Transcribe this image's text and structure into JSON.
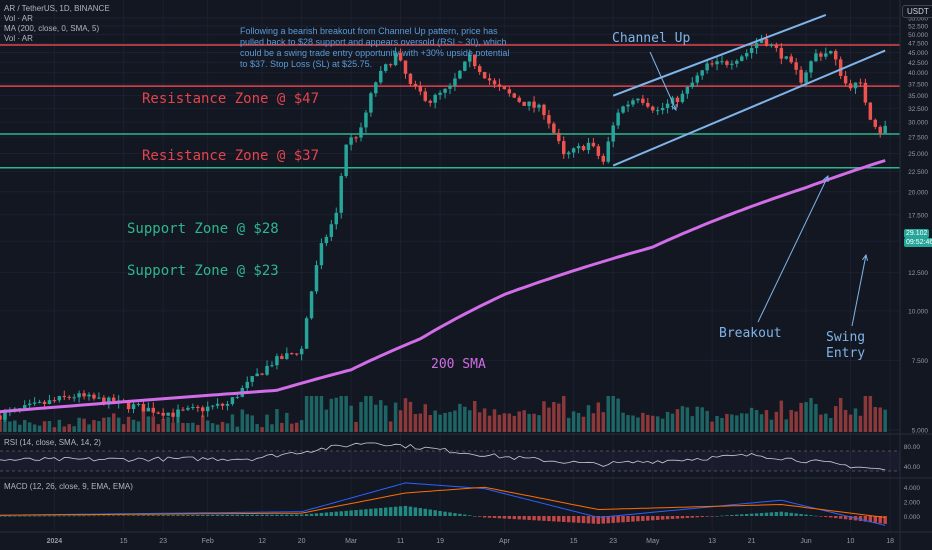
{
  "header": {
    "symbol_line": "AR / TetherUS, 1D, BINANCE",
    "vol_line_1": "Vol · AR",
    "ma_line": "MA (200, close, 0, SMA, 5)",
    "vol_line_2": "Vol · AR",
    "currency_button": "USDT"
  },
  "note": "Following a bearish breakout from Channel Up pattern, price has pulled back to $28 support and appears oversold (RSI ~ 30), which could be a swing trade entry opportunity with +30% upside potential to $37. Stop Loss (SL) at $25.75.",
  "annotations": {
    "resistance_47": "Resistance Zone @ $47",
    "resistance_37": "Resistance Zone @ $37",
    "support_28": "Support Zone @ $28",
    "support_23": "Support Zone @ $23",
    "channel_up": "Channel Up",
    "breakout": "Breakout",
    "swing_entry_1": "Swing",
    "swing_entry_2": "Entry",
    "sma_label": "200 SMA"
  },
  "price_tags": {
    "last_price": "29.102",
    "countdown": "09:52:46"
  },
  "rsi_panel": {
    "legend": "RSI (14, close, SMA, 14, 2)",
    "ticks": [
      "80.00",
      "40.00"
    ]
  },
  "macd_panel": {
    "legend": "MACD (12, 26, close, 9, EMA, EMA)",
    "ticks": [
      "4.000",
      "2.000",
      "0.000"
    ]
  },
  "colors": {
    "background": "#131722",
    "up": "#26a69a",
    "down": "#ef5350",
    "resistance": "#e5434d",
    "support": "#2fb58d",
    "channel": "#80b4e8",
    "sma": "#d16de6",
    "note_text": "#5b9bd5"
  },
  "chart_data": {
    "type": "candlestick",
    "price_axis": {
      "scale": "log",
      "ticks": [
        "55.000",
        "52.500",
        "50.000",
        "47.500",
        "45.000",
        "42.500",
        "40.000",
        "37.500",
        "35.000",
        "32.500",
        "30.000",
        "27.500",
        "25.000",
        "22.500",
        "20.000",
        "17.500",
        "15.000",
        "12.500",
        "10.000",
        "7.500",
        "5.000"
      ]
    },
    "time_axis": {
      "ticks": [
        {
          "label": "2024",
          "date": "2024-01-01",
          "bold": true
        },
        {
          "label": "15",
          "date": "2024-01-15"
        },
        {
          "label": "23",
          "date": "2024-01-23"
        },
        {
          "label": "Feb",
          "date": "2024-02-01"
        },
        {
          "label": "12",
          "date": "2024-02-12"
        },
        {
          "label": "20",
          "date": "2024-02-20"
        },
        {
          "label": "Mar",
          "date": "2024-03-01"
        },
        {
          "label": "11",
          "date": "2024-03-11"
        },
        {
          "label": "19",
          "date": "2024-03-19"
        },
        {
          "label": "Apr",
          "date": "2024-04-01"
        },
        {
          "label": "15",
          "date": "2024-04-15"
        },
        {
          "label": "23",
          "date": "2024-04-23"
        },
        {
          "label": "May",
          "date": "2024-05-01"
        },
        {
          "label": "13",
          "date": "2024-05-13"
        },
        {
          "label": "21",
          "date": "2024-05-21"
        },
        {
          "label": "Jun",
          "date": "2024-06-01"
        },
        {
          "label": "10",
          "date": "2024-06-10"
        },
        {
          "label": "18",
          "date": "2024-06-18"
        }
      ]
    },
    "horizontal_levels": [
      {
        "label": "Resistance Zone @ $47",
        "price": 47
      },
      {
        "label": "Resistance Zone @ $37",
        "price": 37
      },
      {
        "label": "Support Zone @ $28",
        "price": 28
      },
      {
        "label": "Support Zone @ $23",
        "price": 23
      }
    ],
    "channel_up": {
      "upper": [
        {
          "date": "2024-04-23",
          "price": 35.0
        },
        {
          "date": "2024-06-05",
          "price": 56.0
        }
      ],
      "lower": [
        {
          "date": "2024-04-23",
          "price": 23.3
        },
        {
          "date": "2024-06-17",
          "price": 45.5
        }
      ]
    },
    "price_keyframes": [
      {
        "date": "2023-12-20",
        "price": 5.4
      },
      {
        "date": "2024-01-05",
        "price": 6.1
      },
      {
        "date": "2024-01-15",
        "price": 5.8
      },
      {
        "date": "2024-01-25",
        "price": 5.5
      },
      {
        "date": "2024-02-05",
        "price": 5.8
      },
      {
        "date": "2024-02-14",
        "price": 7.4
      },
      {
        "date": "2024-02-20",
        "price": 8.0
      },
      {
        "date": "2024-02-24",
        "price": 14.5
      },
      {
        "date": "2024-02-27",
        "price": 17.5
      },
      {
        "date": "2024-02-29",
        "price": 26.5
      },
      {
        "date": "2024-03-03",
        "price": 28.5
      },
      {
        "date": "2024-03-06",
        "price": 38.0
      },
      {
        "date": "2024-03-10",
        "price": 44.5
      },
      {
        "date": "2024-03-13",
        "price": 37.0
      },
      {
        "date": "2024-03-17",
        "price": 34.0
      },
      {
        "date": "2024-03-21",
        "price": 36.5
      },
      {
        "date": "2024-03-25",
        "price": 43.5
      },
      {
        "date": "2024-03-30",
        "price": 37.0
      },
      {
        "date": "2024-04-04",
        "price": 34.0
      },
      {
        "date": "2024-04-09",
        "price": 32.0
      },
      {
        "date": "2024-04-13",
        "price": 24.5
      },
      {
        "date": "2024-04-18",
        "price": 26.5
      },
      {
        "date": "2024-04-21",
        "price": 23.8
      },
      {
        "date": "2024-04-24",
        "price": 32.0
      },
      {
        "date": "2024-04-28",
        "price": 35.0
      },
      {
        "date": "2024-05-02",
        "price": 32.0
      },
      {
        "date": "2024-05-07",
        "price": 35.0
      },
      {
        "date": "2024-05-12",
        "price": 41.5
      },
      {
        "date": "2024-05-16",
        "price": 42.5
      },
      {
        "date": "2024-05-20",
        "price": 45.0
      },
      {
        "date": "2024-05-23",
        "price": 49.0
      },
      {
        "date": "2024-05-27",
        "price": 44.5
      },
      {
        "date": "2024-05-31",
        "price": 38.5
      },
      {
        "date": "2024-06-03",
        "price": 44.5
      },
      {
        "date": "2024-06-06",
        "price": 45.0
      },
      {
        "date": "2024-06-09",
        "price": 37.5
      },
      {
        "date": "2024-06-12",
        "price": 37.0
      },
      {
        "date": "2024-06-14",
        "price": 31.0
      },
      {
        "date": "2024-06-16",
        "price": 28.5
      },
      {
        "date": "2024-06-17",
        "price": 29.1
      }
    ],
    "sma_200": [
      {
        "date": "2023-12-20",
        "price": 5.55
      },
      {
        "date": "2024-02-15",
        "price": 6.3
      },
      {
        "date": "2024-03-01",
        "price": 7.1
      },
      {
        "date": "2024-03-15",
        "price": 8.5
      },
      {
        "date": "2024-04-01",
        "price": 11.0
      },
      {
        "date": "2024-05-01",
        "price": 14.5
      },
      {
        "date": "2024-06-01",
        "price": 20.5
      },
      {
        "date": "2024-06-17",
        "price": 24.0
      }
    ],
    "rsi": [
      {
        "date": "2023-12-20",
        "value": 52
      },
      {
        "date": "2024-02-10",
        "value": 55
      },
      {
        "date": "2024-03-05",
        "value": 88
      },
      {
        "date": "2024-04-01",
        "value": 58
      },
      {
        "date": "2024-04-20",
        "value": 43
      },
      {
        "date": "2024-05-22",
        "value": 62
      },
      {
        "date": "2024-06-17",
        "value": 32
      }
    ],
    "macd": [
      {
        "date": "2023-12-20",
        "macd": 0.1,
        "signal": 0.1
      },
      {
        "date": "2024-02-20",
        "macd": 0.6,
        "signal": 0.4
      },
      {
        "date": "2024-03-12",
        "macd": 4.6,
        "signal": 3.2
      },
      {
        "date": "2024-03-28",
        "macd": 3.8,
        "signal": 4.0
      },
      {
        "date": "2024-04-20",
        "macd": -0.2,
        "signal": 0.9
      },
      {
        "date": "2024-05-27",
        "macd": 2.2,
        "signal": 1.6
      },
      {
        "date": "2024-06-17",
        "macd": -1.3,
        "signal": -0.2
      }
    ]
  }
}
